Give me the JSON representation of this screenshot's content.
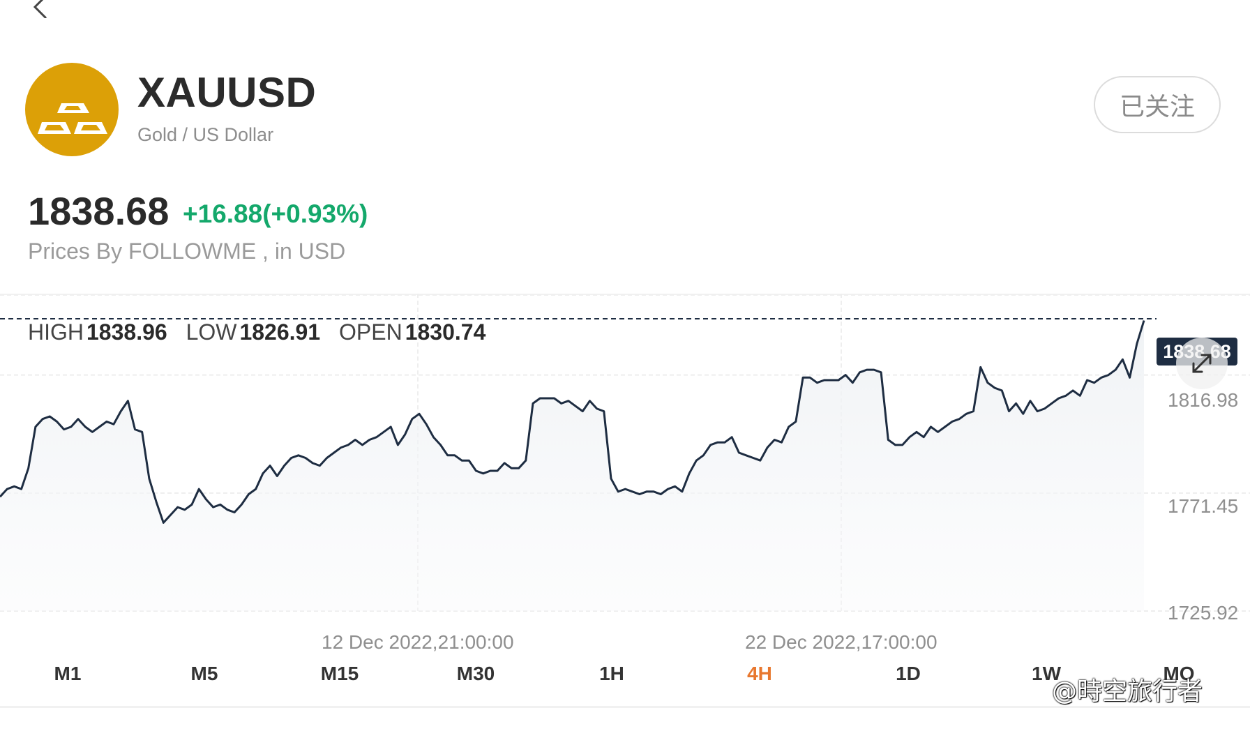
{
  "header": {
    "symbol": "XAUUSD",
    "name": "Gold / US Dollar",
    "follow_label": "已关注"
  },
  "quote": {
    "price": "1838.68",
    "change": "+16.88(+0.93%)",
    "source": "Prices By FOLLOWME , in USD",
    "high_label": "HIGH",
    "high": "1838.96",
    "low_label": "LOW",
    "low": "1826.91",
    "open_label": "OPEN",
    "open": "1830.74"
  },
  "chart_data": {
    "type": "area",
    "y_ticks": [
      "1816.98",
      "1771.45",
      "1725.92"
    ],
    "ylim": [
      1725.92,
      1839.5
    ],
    "x_ticks": [
      "12 Dec 2022,21:00:00",
      "22 Dec 2022,17:00:00"
    ],
    "last_price_label": "1838.68",
    "series": [
      {
        "values": [
          1770,
          1773,
          1774,
          1773,
          1781,
          1797,
          1800,
          1801,
          1799,
          1796,
          1797,
          1800,
          1797,
          1795,
          1797,
          1799,
          1798,
          1803,
          1807,
          1796,
          1795,
          1777,
          1768,
          1760,
          1763,
          1766,
          1765,
          1767,
          1773,
          1769,
          1766,
          1767,
          1765,
          1764,
          1767,
          1771,
          1773,
          1779,
          1782,
          1778,
          1782,
          1785,
          1786,
          1785,
          1783,
          1782,
          1785,
          1787,
          1789,
          1790,
          1792,
          1790,
          1792,
          1793,
          1795,
          1797,
          1790,
          1794,
          1800,
          1802,
          1798,
          1793,
          1790,
          1786,
          1786,
          1784,
          1784,
          1780,
          1779,
          1780,
          1780,
          1783,
          1781,
          1781,
          1784,
          1806,
          1808,
          1808,
          1808,
          1806,
          1807,
          1805,
          1803,
          1807,
          1804,
          1803,
          1777,
          1772,
          1773,
          1772,
          1771,
          1772,
          1772,
          1771,
          1773,
          1774,
          1772,
          1779,
          1784,
          1786,
          1790,
          1791,
          1791,
          1793,
          1787,
          1786,
          1785,
          1784,
          1789,
          1792,
          1791,
          1797,
          1799,
          1816,
          1816,
          1814,
          1815,
          1815,
          1815,
          1817,
          1814,
          1818,
          1819,
          1819,
          1818,
          1792,
          1790,
          1790,
          1793,
          1795,
          1793,
          1797,
          1795,
          1797,
          1799,
          1800,
          1802,
          1803,
          1820,
          1814,
          1812,
          1811,
          1803,
          1806,
          1802,
          1807,
          1803,
          1804,
          1806,
          1808,
          1809,
          1811,
          1809,
          1815,
          1814,
          1816,
          1817,
          1819,
          1823,
          1816,
          1829,
          1838
        ]
      }
    ]
  },
  "timeframes": [
    {
      "label": "M1",
      "active": false
    },
    {
      "label": "M5",
      "active": false
    },
    {
      "label": "M15",
      "active": false
    },
    {
      "label": "M30",
      "active": false
    },
    {
      "label": "1H",
      "active": false
    },
    {
      "label": "4H",
      "active": true
    },
    {
      "label": "1D",
      "active": false
    },
    {
      "label": "1W",
      "active": false
    },
    {
      "label": "MO",
      "active": false
    }
  ],
  "watermark": "@時空旅行者",
  "colors": {
    "accent": "#E8772E",
    "up": "#14A86B",
    "line": "#1E2D42",
    "logo": "#DCA007"
  },
  "icons": {
    "back": "chevron-left-icon",
    "logo": "gold-bars-icon",
    "expand": "expand-arrows-icon"
  }
}
